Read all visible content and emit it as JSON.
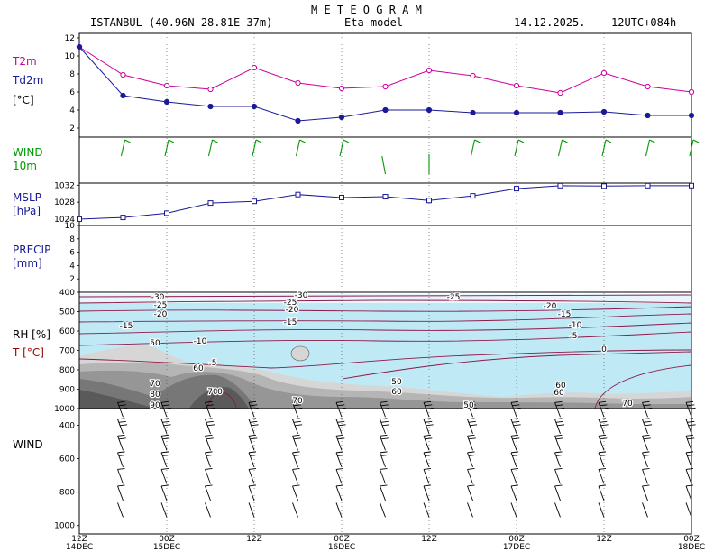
{
  "header": {
    "title": "M E T E O G R A M",
    "location": "ISTANBUL (40.96N 28.81E  37m)",
    "model": "Eta-model",
    "date": "14.12.2025.",
    "run": "12UTC+084h"
  },
  "panels": {
    "temp": {
      "label1": "T2m",
      "label2": "Td2m",
      "label3": "[°C]",
      "color1": "#cc0099",
      "color2": "#1a1a99"
    },
    "wind10": {
      "label1": "WIND",
      "label2": "10m",
      "color": "#009900"
    },
    "mslp": {
      "label1": "MSLP",
      "label2": "[hPa]",
      "color": "#1a1a99"
    },
    "precip": {
      "label1": "PRECIP",
      "label2": "[mm]",
      "color": "#1a1a99"
    },
    "rh": {
      "label1": "RH [%]",
      "label2": "T [°C]",
      "color1": "#000000",
      "color2": "#990000"
    },
    "windprof": {
      "label1": "WIND"
    }
  },
  "x_axis": {
    "ticks": [
      {
        "top": "12Z",
        "bottom": "14DEC"
      },
      {
        "top": "00Z",
        "bottom": "15DEC"
      },
      {
        "top": "12Z",
        "bottom": ""
      },
      {
        "top": "00Z",
        "bottom": "16DEC"
      },
      {
        "top": "12Z",
        "bottom": ""
      },
      {
        "top": "00Z",
        "bottom": "17DEC"
      },
      {
        "top": "12Z",
        "bottom": ""
      },
      {
        "top": "00Z",
        "bottom": "18DEC"
      }
    ]
  },
  "chart_data": [
    {
      "type": "line",
      "title": "T2m / Td2m",
      "ylabel": "[°C]",
      "x_hours": [
        0,
        6,
        12,
        18,
        24,
        30,
        36,
        42,
        48,
        54,
        60,
        66,
        72,
        78,
        84
      ],
      "ylim": [
        1,
        12.5
      ],
      "yticks": [
        2,
        4,
        6,
        8,
        10,
        12
      ],
      "series": [
        {
          "name": "T2m",
          "values": [
            11,
            7.9,
            6.7,
            6.3,
            8.7,
            7,
            6.4,
            6.6,
            8.4,
            7.8,
            6.7,
            5.9,
            8.1,
            6.6,
            6
          ]
        },
        {
          "name": "Td2m",
          "values": [
            11,
            5.6,
            4.9,
            4.4,
            4.4,
            2.8,
            3.2,
            4,
            4,
            3.7,
            3.7,
            3.7,
            3.8,
            3.4,
            3.4
          ]
        }
      ]
    },
    {
      "type": "scatter",
      "title": "WIND 10m",
      "x_hours": [
        6,
        12,
        18,
        24,
        30,
        36,
        42,
        48,
        54,
        60,
        66,
        72,
        78,
        84
      ],
      "direction_deg": [
        200,
        200,
        200,
        200,
        210,
        220,
        220,
        0,
        225,
        230,
        230,
        230,
        240,
        240
      ],
      "speed_kt": [
        10,
        10,
        10,
        10,
        10,
        15,
        25,
        30,
        10,
        10,
        10,
        10,
        10,
        10
      ]
    },
    {
      "type": "line",
      "title": "MSLP",
      "ylabel": "[hPa]",
      "ylim": [
        1022.5,
        1032.5
      ],
      "yticks": [
        1024,
        1028,
        1032
      ],
      "x_hours": [
        0,
        6,
        12,
        18,
        24,
        30,
        36,
        42,
        48,
        54,
        60,
        66,
        72,
        78,
        84
      ],
      "series": [
        {
          "name": "MSLP",
          "values": [
            1024,
            1024.4,
            1025.4,
            1027.8,
            1028.2,
            1029.8,
            1029.1,
            1029.3,
            1028.4,
            1029.5,
            1031.2,
            1031.9,
            1031.8,
            1031.9,
            1031.9
          ]
        }
      ]
    },
    {
      "type": "bar",
      "title": "PRECIP",
      "ylabel": "[mm]",
      "ylim": [
        0,
        10
      ],
      "yticks": [
        2,
        4,
        6,
        8,
        10
      ],
      "x_hours": [
        0,
        6,
        12,
        18,
        24,
        30,
        36,
        42,
        48,
        54,
        60,
        66,
        72,
        78,
        84
      ],
      "values": [
        0,
        0,
        0,
        0,
        0,
        0,
        0,
        0,
        0,
        0,
        0,
        0,
        0,
        0,
        0
      ]
    },
    {
      "type": "heatmap",
      "title": "RH [%] / T [°C] cross-section",
      "ylabel": "hPa",
      "yticks": [
        400,
        500,
        600,
        700,
        800,
        900,
        1000
      ],
      "ylim": [
        1000,
        400
      ],
      "rh_contour_labels": [
        "50",
        "60",
        "70",
        "80",
        "90",
        "60",
        "70",
        "50",
        "60",
        "70",
        "50",
        "60",
        "70"
      ],
      "temp_contour_labels": [
        "-30",
        "-25",
        "-20",
        "-15",
        "-10",
        "-5",
        "0",
        "-30",
        "-25",
        "-20",
        "-15",
        "-25",
        "-20",
        "-15",
        "-10",
        "-5",
        "0"
      ]
    },
    {
      "type": "scatter",
      "title": "WIND profile",
      "ylabel": "hPa",
      "yticks": [
        400,
        600,
        800,
        1000
      ],
      "ylim": [
        300,
        1050
      ],
      "x_hours": [
        0,
        6,
        12,
        18,
        24,
        30,
        36,
        42,
        48,
        54,
        60,
        66,
        72,
        78,
        84
      ],
      "levels_hpa": [
        350,
        450,
        550,
        650,
        750,
        850,
        950
      ]
    }
  ]
}
